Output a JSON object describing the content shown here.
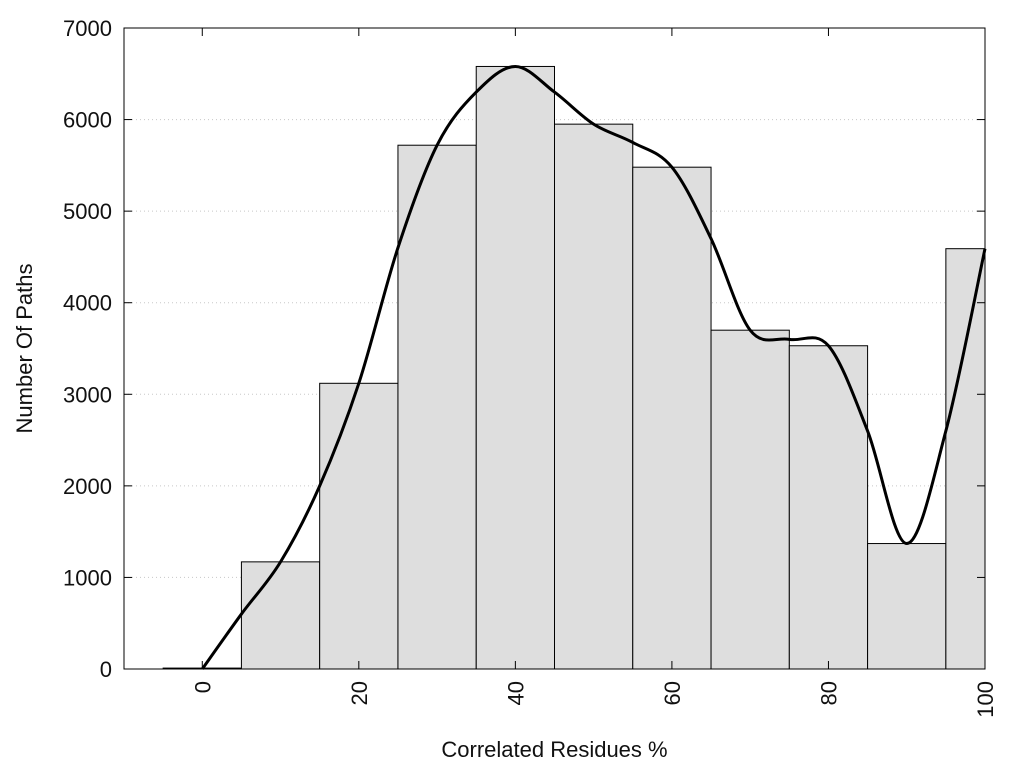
{
  "chart_data": {
    "type": "bar",
    "xlabel": "Correlated Residues %",
    "ylabel": "Number Of Paths",
    "x": [
      0,
      10,
      20,
      30,
      40,
      50,
      60,
      70,
      80,
      90,
      100
    ],
    "values": [
      10,
      1170,
      3120,
      5720,
      6580,
      5950,
      5480,
      3700,
      3530,
      1370,
      4590
    ],
    "bar_width": 10,
    "xlim": [
      -10,
      100
    ],
    "ylim": [
      0,
      7000
    ],
    "x_ticks": [
      "0",
      "20",
      "40",
      "60",
      "80",
      "100"
    ],
    "x_tick_values": [
      0,
      20,
      40,
      60,
      80,
      100
    ],
    "y_ticks": [
      "0",
      "1000",
      "2000",
      "3000",
      "4000",
      "5000",
      "6000",
      "7000"
    ],
    "y_tick_values": [
      0,
      1000,
      2000,
      3000,
      4000,
      5000,
      6000,
      7000
    ],
    "grid": "horizontal dotted",
    "bar_color": "#dedede",
    "bar_edge_color": "#000000",
    "curve": {
      "type": "smooth line",
      "color": "#000000",
      "x": [
        0,
        5,
        10,
        15,
        20,
        25,
        30,
        35,
        40,
        45,
        50,
        55,
        60,
        65,
        70,
        75,
        80,
        85,
        90,
        95,
        100
      ],
      "y": [
        0,
        600,
        1170,
        2000,
        3120,
        4600,
        5720,
        6300,
        6580,
        6300,
        5950,
        5750,
        5480,
        4700,
        3700,
        3600,
        3530,
        2600,
        1370,
        2600,
        4590
      ]
    }
  }
}
